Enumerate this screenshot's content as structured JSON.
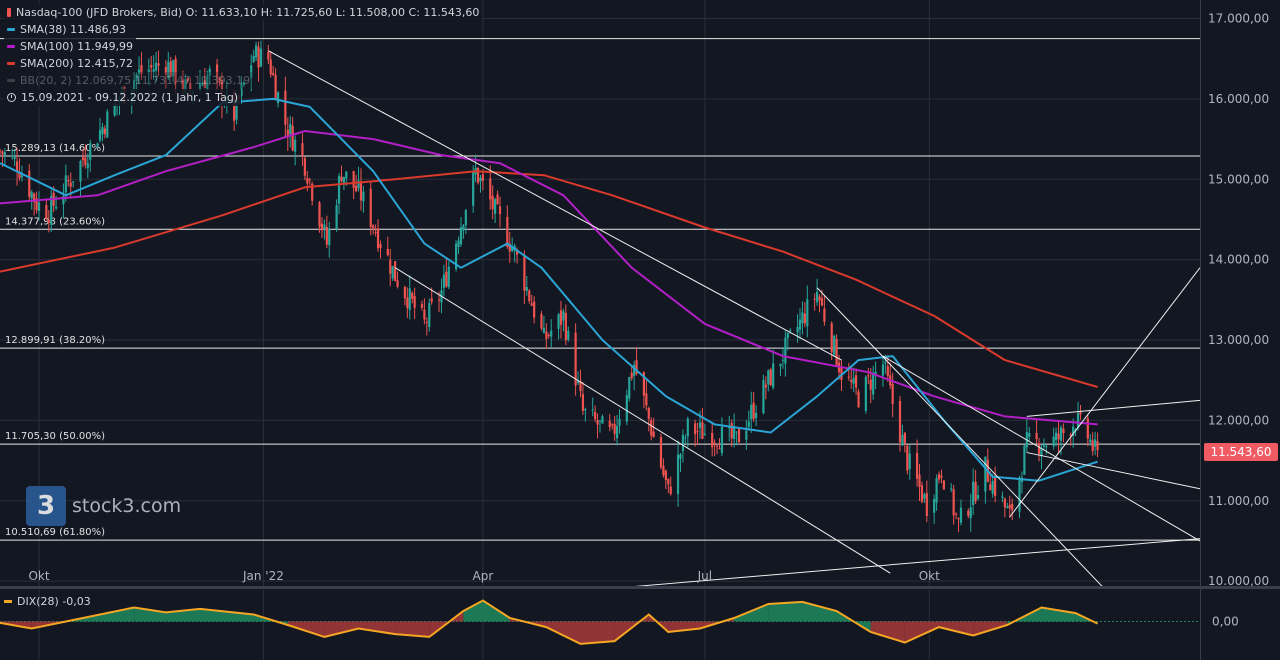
{
  "header": {
    "symbol_line": "Nasdaq-100 (JFD Brokers, Bid)  O: 11.633,10  H: 11.725,60  L: 11.508,00  C: 11.543,60",
    "sma38": "SMA(38)  11.486,93",
    "sma100": "SMA(100)  11.949,99",
    "sma200": "SMA(200)  12.415,72",
    "bb": "BB(20, 2)  12.069,75  11.731,47  11.393,19",
    "period": "15.09.2021 - 09.12.2022  (1 Jahr, 1 Tag)"
  },
  "indicator": {
    "label": "DIX(28)  -0,03",
    "axis_label": "0,00"
  },
  "last_price": "11.543,60",
  "watermark": {
    "logo": "3",
    "text": "stock3.com"
  },
  "colors": {
    "up": "#26a69a",
    "down": "#ef5350",
    "sma38": "#2aa5d5",
    "sma100": "#b21fc6",
    "sma200": "#d93a2c",
    "bg": "#131722",
    "grid": "#2a2e39",
    "text": "#b2b5be",
    "dix": "#f5a623"
  },
  "chart_data": {
    "type": "candlestick",
    "x_tick_labels": [
      "Okt",
      "Jan '22",
      "Apr",
      "Jul",
      "Okt"
    ],
    "y_tick_labels": [
      "17.000,00",
      "16.000,00",
      "15.000,00",
      "14.000,00",
      "13.000,00",
      "12.000,00",
      "11.000,00",
      "10.000,00"
    ],
    "y_ticks": [
      17000,
      16000,
      15000,
      14000,
      13000,
      12000,
      11000,
      10000
    ],
    "ylim": [
      9940,
      17230
    ],
    "fib_levels": [
      {
        "value": 16750,
        "label": ""
      },
      {
        "value": 15289.13,
        "label": "15.289,13 (14.60%)"
      },
      {
        "value": 14377.98,
        "label": "14.377,98 (23.60%)"
      },
      {
        "value": 12899.91,
        "label": "12.899,91 (38.20%)"
      },
      {
        "value": 11705.3,
        "label": "11.705,30 (50.00%)"
      },
      {
        "value": 10510.69,
        "label": "10.510,69 (61.80%)"
      }
    ],
    "close_path": [
      [
        "2021-09-15",
        15350
      ],
      [
        "2021-09-22",
        15200
      ],
      [
        "2021-09-30",
        14700
      ],
      [
        "2021-10-05",
        14600
      ],
      [
        "2021-10-14",
        15000
      ],
      [
        "2021-10-22",
        15400
      ],
      [
        "2021-11-01",
        15900
      ],
      [
        "2021-11-10",
        16300
      ],
      [
        "2021-11-22",
        16450
      ],
      [
        "2021-12-01",
        16100
      ],
      [
        "2021-12-10",
        16300
      ],
      [
        "2021-12-20",
        15800
      ],
      [
        "2021-12-28",
        16550
      ],
      [
        "2022-01-03",
        16500
      ],
      [
        "2022-01-10",
        15700
      ],
      [
        "2022-01-18",
        15200
      ],
      [
        "2022-01-27",
        14200
      ],
      [
        "2022-02-02",
        15100
      ],
      [
        "2022-02-10",
        14800
      ],
      [
        "2022-02-24",
        13800
      ],
      [
        "2022-03-08",
        13200
      ],
      [
        "2022-03-15",
        13600
      ],
      [
        "2022-03-29",
        15100
      ],
      [
        "2022-04-06",
        14600
      ],
      [
        "2022-04-14",
        14100
      ],
      [
        "2022-04-26",
        13000
      ],
      [
        "2022-05-04",
        13300
      ],
      [
        "2022-05-12",
        12100
      ],
      [
        "2022-05-24",
        11800
      ],
      [
        "2022-06-02",
        12700
      ],
      [
        "2022-06-16",
        11100
      ],
      [
        "2022-06-24",
        11900
      ],
      [
        "2022-07-14",
        11750
      ],
      [
        "2022-07-28",
        12550
      ],
      [
        "2022-08-16",
        13600
      ],
      [
        "2022-08-26",
        12600
      ],
      [
        "2022-09-02",
        12300
      ],
      [
        "2022-09-12",
        12700
      ],
      [
        "2022-09-22",
        11500
      ],
      [
        "2022-09-30",
        10950
      ],
      [
        "2022-10-06",
        11400
      ],
      [
        "2022-10-13",
        10700
      ],
      [
        "2022-10-24",
        11400
      ],
      [
        "2022-11-03",
        10800
      ],
      [
        "2022-11-10",
        11700
      ],
      [
        "2022-11-22",
        11750
      ],
      [
        "2022-11-30",
        12000
      ],
      [
        "2022-12-05",
        11800
      ],
      [
        "2022-12-09",
        11543.6
      ]
    ],
    "sma38": [
      [
        "2021-09-15",
        15200
      ],
      [
        "2021-10-12",
        14800
      ],
      [
        "2021-11-01",
        15050
      ],
      [
        "2021-11-22",
        15300
      ],
      [
        "2021-12-15",
        15950
      ],
      [
        "2022-01-05",
        16000
      ],
      [
        "2022-01-20",
        15900
      ],
      [
        "2022-02-15",
        15100
      ],
      [
        "2022-03-08",
        14200
      ],
      [
        "2022-03-23",
        13900
      ],
      [
        "2022-04-11",
        14200
      ],
      [
        "2022-04-25",
        13900
      ],
      [
        "2022-05-20",
        13000
      ],
      [
        "2022-06-15",
        12300
      ],
      [
        "2022-07-05",
        11950
      ],
      [
        "2022-07-28",
        11850
      ],
      [
        "2022-08-16",
        12300
      ],
      [
        "2022-09-02",
        12750
      ],
      [
        "2022-09-16",
        12800
      ],
      [
        "2022-10-07",
        12000
      ],
      [
        "2022-10-27",
        11300
      ],
      [
        "2022-11-15",
        11250
      ],
      [
        "2022-12-09",
        11486.93
      ]
    ],
    "sma100": [
      [
        "2021-09-15",
        14700
      ],
      [
        "2021-10-25",
        14800
      ],
      [
        "2021-11-22",
        15100
      ],
      [
        "2021-12-28",
        15400
      ],
      [
        "2022-01-18",
        15600
      ],
      [
        "2022-02-15",
        15500
      ],
      [
        "2022-03-15",
        15300
      ],
      [
        "2022-04-08",
        15200
      ],
      [
        "2022-05-04",
        14800
      ],
      [
        "2022-06-01",
        13900
      ],
      [
        "2022-07-01",
        13200
      ],
      [
        "2022-08-02",
        12800
      ],
      [
        "2022-09-06",
        12600
      ],
      [
        "2022-10-03",
        12300
      ],
      [
        "2022-11-01",
        12050
      ],
      [
        "2022-12-09",
        11949.99
      ]
    ],
    "sma200": [
      [
        "2021-09-15",
        13850
      ],
      [
        "2021-11-01",
        14150
      ],
      [
        "2021-12-15",
        14550
      ],
      [
        "2022-01-18",
        14900
      ],
      [
        "2022-02-24",
        15000
      ],
      [
        "2022-03-29",
        15100
      ],
      [
        "2022-04-26",
        15050
      ],
      [
        "2022-05-24",
        14800
      ],
      [
        "2022-07-01",
        14400
      ],
      [
        "2022-08-02",
        14100
      ],
      [
        "2022-09-01",
        13750
      ],
      [
        "2022-10-03",
        13300
      ],
      [
        "2022-11-01",
        12750
      ],
      [
        "2022-12-09",
        12415.72
      ]
    ],
    "trend_lines": [
      [
        [
          "2022-01-03",
          16600
        ],
        [
          "2022-08-26",
          12750
        ]
      ],
      [
        [
          "2022-02-24",
          13900
        ],
        [
          "2022-09-15",
          10100
        ]
      ],
      [
        [
          "2022-08-16",
          13650
        ],
        [
          "2022-12-12",
          9900
        ]
      ],
      [
        [
          "2022-09-12",
          12800
        ],
        [
          "2023-01-20",
          10500
        ]
      ],
      [
        [
          "2022-05-20",
          9900
        ],
        [
          "2023-01-20",
          10530
        ]
      ],
      [
        [
          "2022-11-03",
          10800
        ],
        [
          "2023-01-20",
          13900
        ]
      ],
      [
        [
          "2022-11-10",
          12050
        ],
        [
          "2023-01-20",
          12250
        ]
      ],
      [
        [
          "2022-11-10",
          11600
        ],
        [
          "2023-01-20",
          11150
        ]
      ]
    ],
    "dix": [
      [
        "2021-09-15",
        -0.02
      ],
      [
        "2021-09-28",
        -0.1
      ],
      [
        "2021-10-12",
        0.0
      ],
      [
        "2021-10-26",
        0.1
      ],
      [
        "2021-11-09",
        0.2
      ],
      [
        "2021-11-22",
        0.13
      ],
      [
        "2021-12-06",
        0.18
      ],
      [
        "2021-12-28",
        0.1
      ],
      [
        "2022-01-11",
        -0.05
      ],
      [
        "2022-01-26",
        -0.22
      ],
      [
        "2022-02-09",
        -0.1
      ],
      [
        "2022-02-24",
        -0.18
      ],
      [
        "2022-03-10",
        -0.22
      ],
      [
        "2022-03-24",
        0.15
      ],
      [
        "2022-04-01",
        0.3
      ],
      [
        "2022-04-12",
        0.05
      ],
      [
        "2022-04-27",
        -0.08
      ],
      [
        "2022-05-11",
        -0.32
      ],
      [
        "2022-05-25",
        -0.28
      ],
      [
        "2022-06-08",
        0.1
      ],
      [
        "2022-06-16",
        -0.15
      ],
      [
        "2022-06-29",
        -0.1
      ],
      [
        "2022-07-13",
        0.05
      ],
      [
        "2022-07-27",
        0.25
      ],
      [
        "2022-08-10",
        0.28
      ],
      [
        "2022-08-24",
        0.15
      ],
      [
        "2022-09-07",
        -0.15
      ],
      [
        "2022-09-21",
        -0.3
      ],
      [
        "2022-10-05",
        -0.08
      ],
      [
        "2022-10-19",
        -0.2
      ],
      [
        "2022-11-02",
        -0.05
      ],
      [
        "2022-11-16",
        0.2
      ],
      [
        "2022-11-30",
        0.12
      ],
      [
        "2022-12-09",
        -0.03
      ]
    ],
    "dix_ylim": [
      -0.55,
      0.45
    ]
  }
}
